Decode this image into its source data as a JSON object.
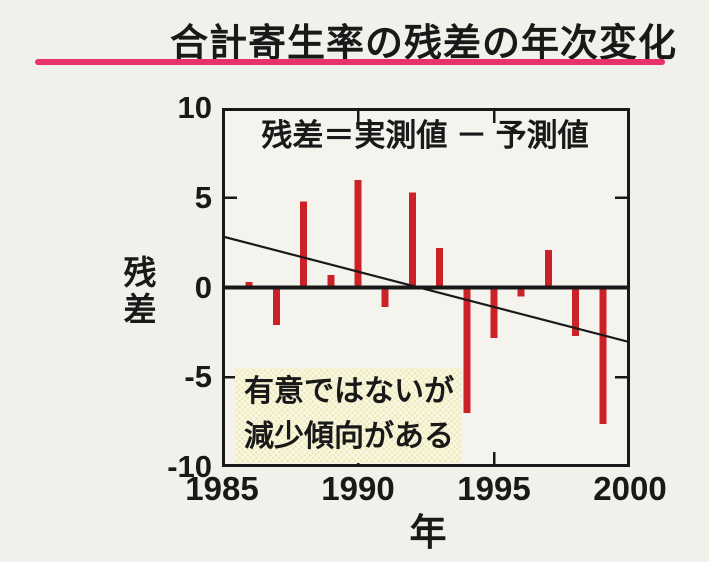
{
  "page": {
    "background": "#f2f0ea",
    "plot_background": "#f5f3ee"
  },
  "header": {
    "title": "合計寄生率の残差の年次変化",
    "underline_color": "#e7326b"
  },
  "chart_data": {
    "type": "bar",
    "title": "合計寄生率の残差の年次変化",
    "xlabel": "年",
    "ylabel": "残差",
    "annotation": "残差＝実測値 － 予測値",
    "note_lines": [
      "有意ではないが",
      "減少傾向がある"
    ],
    "note_bg": "#efeab9",
    "x": [
      1986,
      1987,
      1988,
      1989,
      1990,
      1991,
      1992,
      1993,
      1994,
      1995,
      1996,
      1997,
      1998,
      1999
    ],
    "values": [
      0.3,
      -2.1,
      4.8,
      0.7,
      6.0,
      -1.1,
      5.3,
      2.2,
      -7.0,
      -2.8,
      -0.5,
      2.1,
      -2.7,
      -7.6
    ],
    "bar_color": "#cc2127",
    "axis_color": "#191919",
    "trend_line": {
      "x": [
        1985,
        2000
      ],
      "y": [
        2.85,
        -3.05
      ]
    },
    "xlim": [
      1985,
      2000
    ],
    "ylim": [
      -10,
      10
    ],
    "xticks": [
      1985,
      1990,
      1995,
      2000
    ],
    "yticks": [
      10,
      5,
      0,
      -5,
      -10
    ],
    "grid": false,
    "legend_position": "none"
  }
}
